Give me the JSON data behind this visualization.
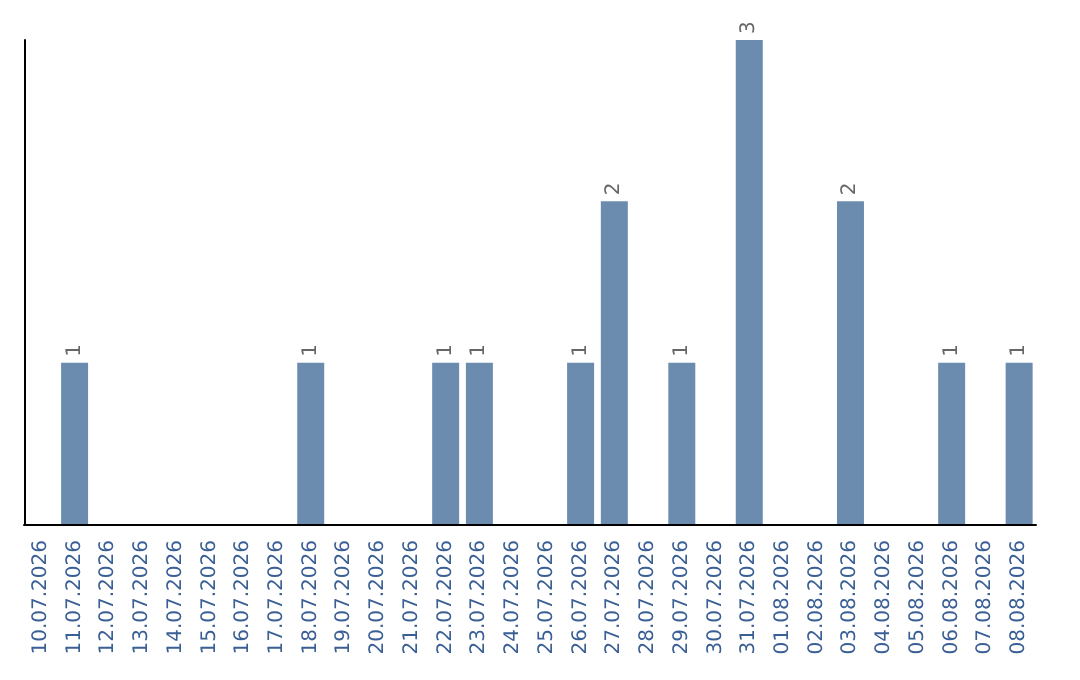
{
  "chart_data": {
    "type": "bar",
    "categories": [
      "10.07.2026",
      "11.07.2026",
      "12.07.2026",
      "13.07.2026",
      "14.07.2026",
      "15.07.2026",
      "16.07.2026",
      "17.07.2026",
      "18.07.2026",
      "19.07.2026",
      "20.07.2026",
      "21.07.2026",
      "22.07.2026",
      "23.07.2026",
      "24.07.2026",
      "25.07.2026",
      "26.07.2026",
      "27.07.2026",
      "28.07.2026",
      "29.07.2026",
      "30.07.2026",
      "31.07.2026",
      "01.08.2026",
      "02.08.2026",
      "03.08.2026",
      "04.08.2026",
      "05.08.2026",
      "06.08.2026",
      "07.08.2026",
      "08.08.2026"
    ],
    "values": [
      0,
      1,
      0,
      0,
      0,
      0,
      0,
      0,
      1,
      0,
      0,
      0,
      1,
      1,
      0,
      0,
      1,
      2,
      0,
      1,
      0,
      3,
      0,
      0,
      2,
      0,
      0,
      1,
      0,
      1
    ],
    "value_labels": [
      null,
      "1",
      null,
      null,
      null,
      null,
      null,
      null,
      "1",
      null,
      null,
      null,
      "1",
      "1",
      null,
      null,
      "1",
      "2",
      null,
      "1",
      null,
      "3",
      null,
      null,
      "2",
      null,
      null,
      "1",
      null,
      "1"
    ],
    "color": "#6b8cae",
    "ylim": [
      0,
      3
    ],
    "grid": false,
    "tick_labels": "x"
  }
}
